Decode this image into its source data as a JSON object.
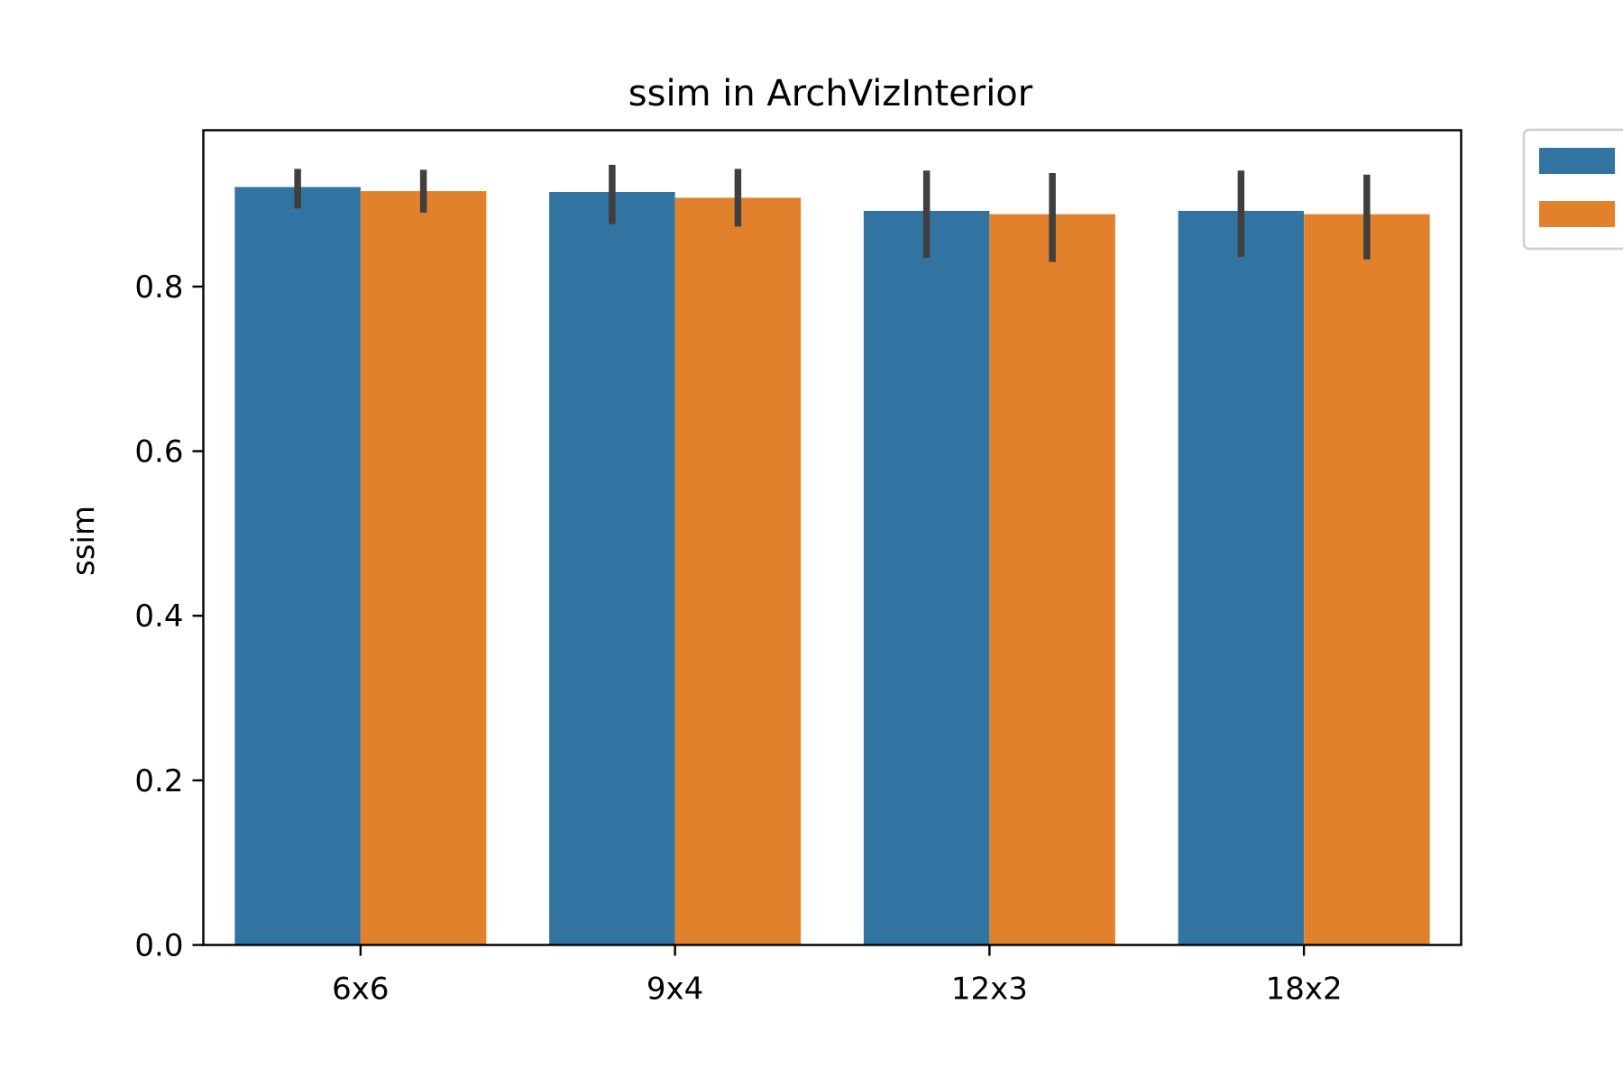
{
  "chart_data": {
    "type": "bar",
    "title": "ssim in ArchVizInterior",
    "xlabel": "",
    "ylabel": "ssim",
    "categories": [
      "6x6",
      "9x4",
      "12x3",
      "18x2"
    ],
    "ylim": [
      0,
      0.99
    ],
    "yticks": [
      0.0,
      0.2,
      0.4,
      0.6,
      0.8
    ],
    "ytick_labels": [
      "0.0",
      "0.2",
      "0.4",
      "0.6",
      "0.8"
    ],
    "grid": false,
    "legend_position": "outside-top-right",
    "series": [
      {
        "name": "",
        "color": "#3274a1",
        "values": [
          0.921,
          0.915,
          0.892,
          0.892
        ],
        "ci_low": [
          0.895,
          0.876,
          0.835,
          0.836
        ],
        "ci_high": [
          0.943,
          0.948,
          0.941,
          0.941
        ]
      },
      {
        "name": "",
        "color": "#e1812c",
        "values": [
          0.916,
          0.908,
          0.888,
          0.888
        ],
        "ci_low": [
          0.89,
          0.873,
          0.83,
          0.833
        ],
        "ci_high": [
          0.942,
          0.943,
          0.938,
          0.936
        ]
      }
    ],
    "errorbar_color": "#3f3f3f"
  }
}
